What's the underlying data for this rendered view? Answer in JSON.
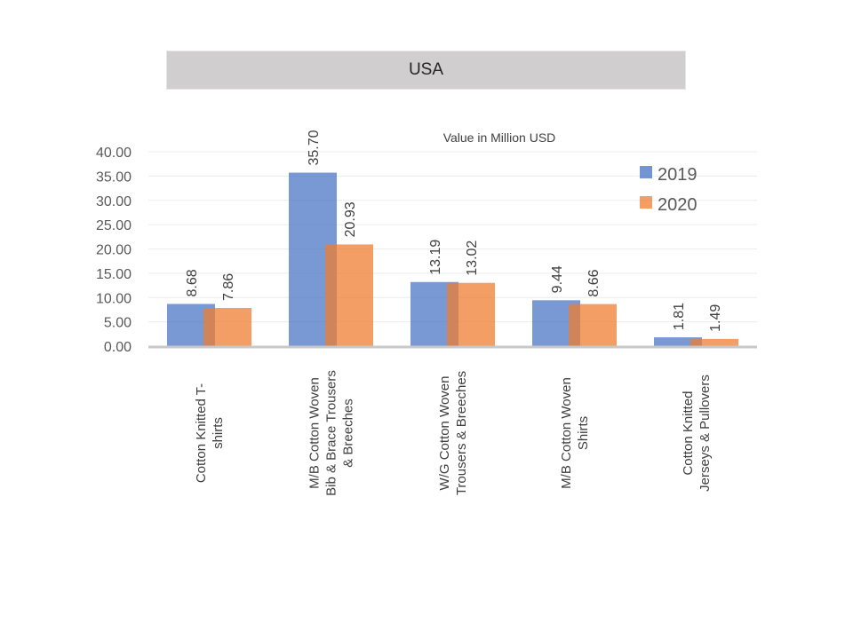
{
  "header": {
    "title": "USA"
  },
  "chart_data": {
    "type": "bar",
    "title": "Value in Million USD",
    "xlabel": "",
    "ylabel": "",
    "ylim": [
      0,
      40
    ],
    "yticks": [
      "0.00",
      "5.00",
      "10.00",
      "15.00",
      "20.00",
      "25.00",
      "30.00",
      "35.00",
      "40.00"
    ],
    "grid": true,
    "legend_position": "top-right",
    "categories": [
      [
        "Cotton  Knitted  T-",
        "shirts"
      ],
      [
        "M/B Cotton  Woven",
        "Bib & Brace Trousers",
        "& Breeches"
      ],
      [
        "W/G Cotton Woven",
        "Trousers & Breeches"
      ],
      [
        "M/B Cotton  Woven",
        "Shirts"
      ],
      [
        "Cotton  Knitted",
        "Jerseys & Pullovers"
      ]
    ],
    "series": [
      {
        "name": "2019",
        "color": "#4472c4",
        "values": [
          8.68,
          35.7,
          13.19,
          9.44,
          1.81
        ],
        "labels": [
          "8.68",
          "35.70",
          "13.19",
          "9.44",
          "1.81"
        ]
      },
      {
        "name": "2020",
        "color": "#ed7d31",
        "values": [
          7.86,
          20.93,
          13.02,
          8.66,
          1.49
        ],
        "labels": [
          "7.86",
          "20.93",
          "13.02",
          "8.66",
          "1.49"
        ]
      }
    ]
  }
}
